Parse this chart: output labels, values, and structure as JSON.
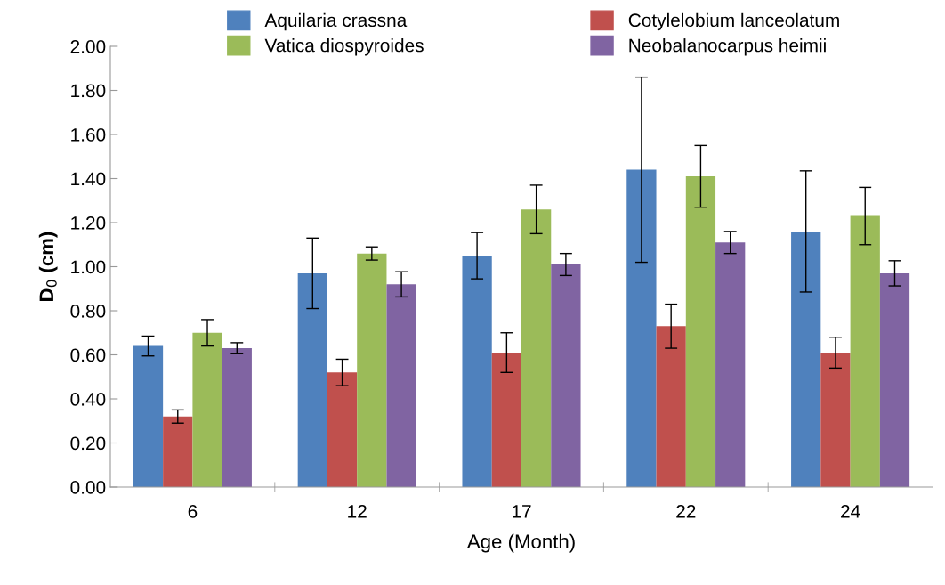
{
  "chart_data": {
    "type": "bar",
    "xlabel": "Age (Month)",
    "ylabel": "D$_{0}$ (cm)",
    "categories": [
      "6",
      "12",
      "17",
      "22",
      "24"
    ],
    "series": [
      {
        "name": "Aquilaria crassna",
        "color": "#4f81bd",
        "values": [
          0.64,
          0.97,
          1.05,
          1.44,
          1.16
        ],
        "errors": [
          0.045,
          0.16,
          0.105,
          0.42,
          0.275
        ]
      },
      {
        "name": "Cotylelobium lanceolatum",
        "color": "#c0504d",
        "values": [
          0.32,
          0.52,
          0.61,
          0.73,
          0.61
        ],
        "errors": [
          0.03,
          0.06,
          0.09,
          0.1,
          0.07
        ]
      },
      {
        "name": "Vatica diospyroides",
        "color": "#9bbb59",
        "values": [
          0.7,
          1.06,
          1.26,
          1.41,
          1.23
        ],
        "errors": [
          0.06,
          0.03,
          0.11,
          0.14,
          0.13
        ]
      },
      {
        "name": "Neobalanocarpus heimii",
        "color": "#8064a2",
        "values": [
          0.63,
          0.92,
          1.01,
          1.11,
          0.97
        ],
        "errors": [
          0.025,
          0.057,
          0.05,
          0.05,
          0.057
        ]
      }
    ],
    "ylim": [
      0,
      2.0
    ],
    "yticks": [
      {
        "value": 0,
        "label": "0.00"
      },
      {
        "value": 0.2,
        "label": "0.20"
      },
      {
        "value": 0.4,
        "label": "0.40"
      },
      {
        "value": 0.6,
        "label": "0.60"
      },
      {
        "value": 0.8,
        "label": "0.80"
      },
      {
        "value": 1.0,
        "label": "1.00"
      },
      {
        "value": 1.2,
        "label": "1.20"
      },
      {
        "value": 1.4,
        "label": "1.40"
      },
      {
        "value": 1.6,
        "label": "1.60"
      },
      {
        "value": 1.8,
        "label": "1.80"
      },
      {
        "value": 2.0,
        "label": "2.00"
      }
    ],
    "grid": false,
    "legend": "top"
  }
}
